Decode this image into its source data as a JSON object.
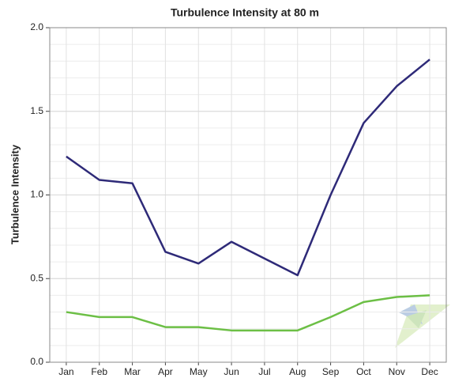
{
  "chart_data": {
    "type": "line",
    "title": "Turbulence Intensity at 80 m",
    "y_label": "Turbulence Intensity",
    "categories": [
      "Jan",
      "Feb",
      "Mar",
      "Apr",
      "May",
      "Jun",
      "Jul",
      "Aug",
      "Sep",
      "Oct",
      "Nov",
      "Dec"
    ],
    "series": [
      {
        "color": "#2e2a78",
        "values": [
          1.23,
          1.09,
          1.07,
          0.66,
          0.59,
          0.72,
          0.62,
          0.52,
          1.0,
          1.43,
          1.65,
          1.81
        ]
      },
      {
        "color": "#6cbf45",
        "values": [
          0.3,
          0.27,
          0.27,
          0.21,
          0.21,
          0.19,
          0.19,
          0.19,
          0.27,
          0.36,
          0.39,
          0.4
        ]
      }
    ],
    "ylim": [
      0,
      2
    ],
    "yticks": [
      {
        "value": 0,
        "label": "0.0"
      },
      0.5,
      {
        "value": 1,
        "label": "1.0"
      },
      1.5,
      {
        "value": 2,
        "label": "2.0"
      }
    ],
    "grid": true
  }
}
